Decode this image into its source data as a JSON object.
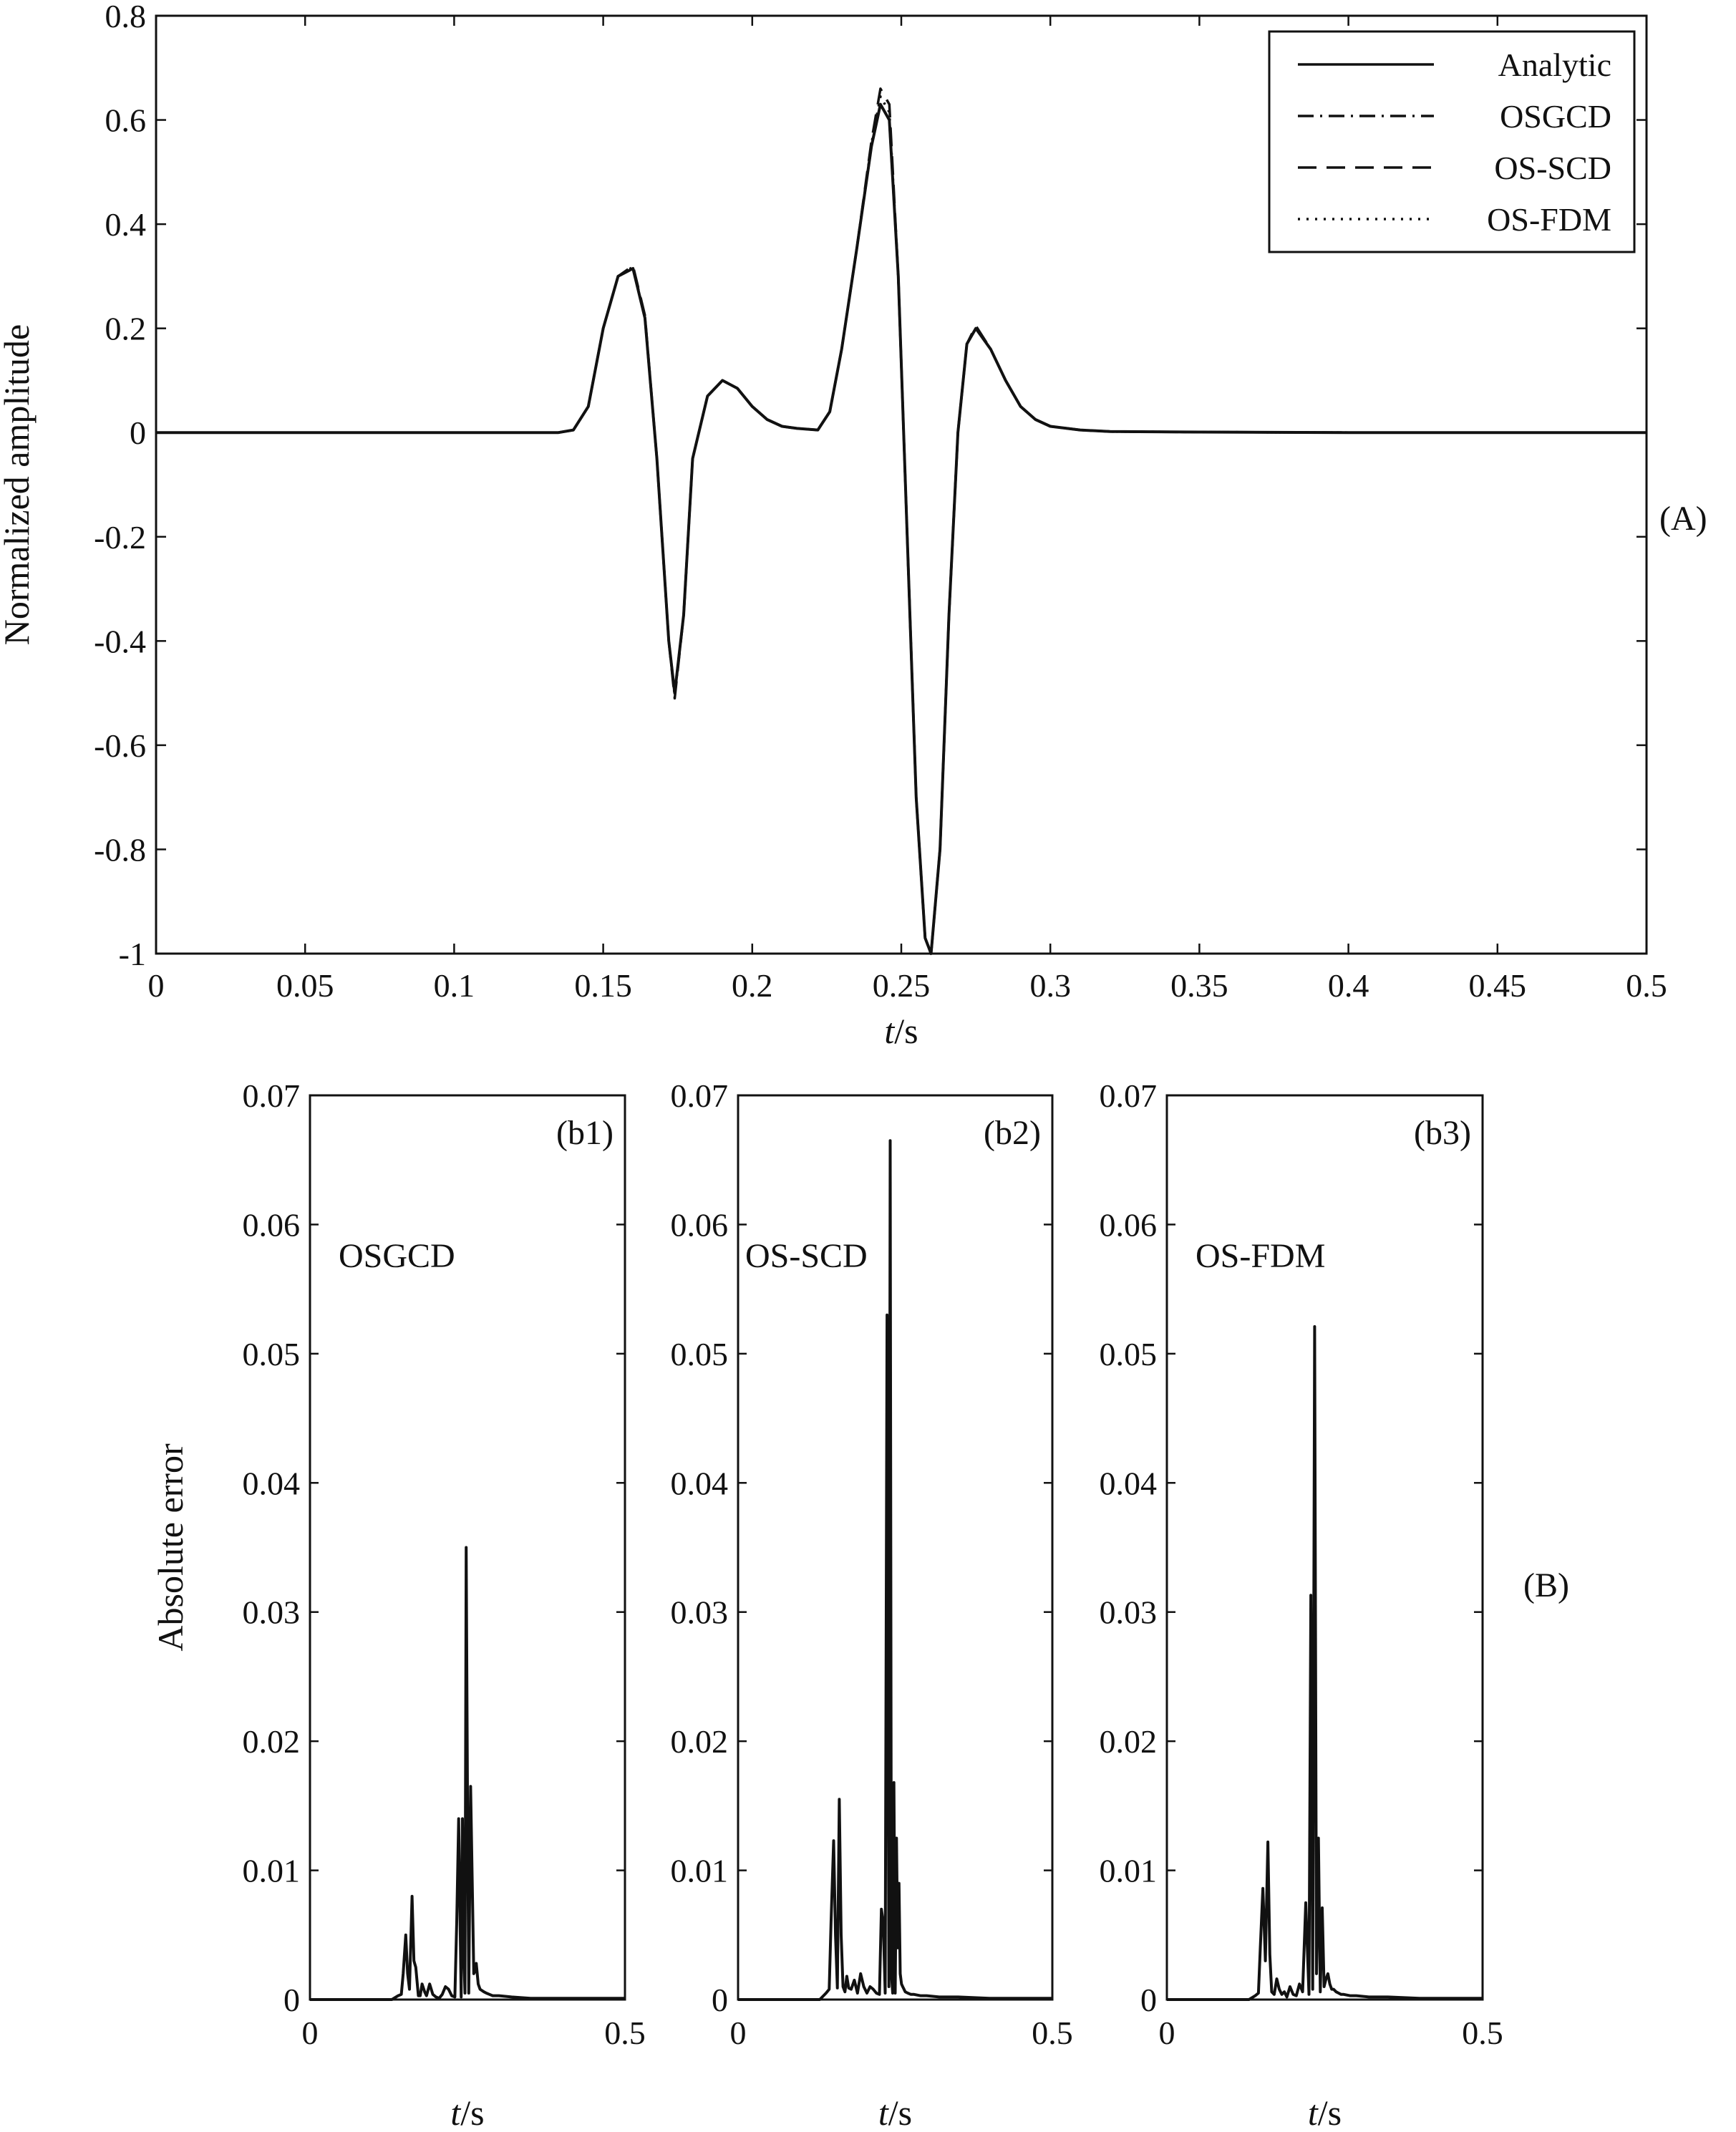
{
  "chart_data": [
    {
      "id": "A",
      "type": "line",
      "panel_label": "(A)",
      "xlabel": "t/s",
      "xlabel_italic": "t",
      "xlabel_rest": "/s",
      "ylabel": "Normalized amplitude",
      "xlim": [
        0,
        0.5
      ],
      "ylim": [
        -1,
        0.8
      ],
      "xticks": [
        "0",
        "0.05",
        "0.1",
        "0.15",
        "0.2",
        "0.25",
        "0.3",
        "0.35",
        "0.4",
        "0.45",
        "0.5"
      ],
      "yticks": [
        "0.8",
        "0.6",
        "0.4",
        "0.2",
        "0",
        "-0.2",
        "-0.4",
        "-0.6",
        "-0.8",
        "-1"
      ],
      "grid": false,
      "legend_position": "top-right",
      "series": [
        {
          "name": "Analytic",
          "style": "solid",
          "x": [
            0,
            0.135,
            0.14,
            0.145,
            0.15,
            0.155,
            0.16,
            0.164,
            0.168,
            0.172,
            0.174,
            0.177,
            0.18,
            0.185,
            0.19,
            0.195,
            0.2,
            0.205,
            0.21,
            0.215,
            0.222,
            0.226,
            0.23,
            0.235,
            0.24,
            0.243,
            0.246,
            0.249,
            0.252,
            0.255,
            0.258,
            0.26,
            0.263,
            0.266,
            0.269,
            0.272,
            0.275,
            0.28,
            0.285,
            0.29,
            0.295,
            0.3,
            0.31,
            0.32,
            0.35,
            0.4,
            0.45,
            0.5
          ],
          "y": [
            0,
            0,
            0.005,
            0.05,
            0.2,
            0.3,
            0.315,
            0.22,
            -0.05,
            -0.4,
            -0.5,
            -0.35,
            -0.05,
            0.07,
            0.1,
            0.085,
            0.05,
            0.025,
            0.012,
            0.008,
            0.005,
            0.04,
            0.16,
            0.35,
            0.55,
            0.63,
            0.6,
            0.3,
            -0.2,
            -0.7,
            -0.97,
            -1.0,
            -0.8,
            -0.35,
            0.0,
            0.17,
            0.2,
            0.16,
            0.1,
            0.05,
            0.025,
            0.012,
            0.005,
            0.002,
            0.001,
            0,
            0,
            0
          ]
        },
        {
          "name": "OSGCD",
          "style": "dash-dot",
          "x": [
            0,
            0.135,
            0.14,
            0.145,
            0.15,
            0.155,
            0.16,
            0.164,
            0.168,
            0.172,
            0.174,
            0.177,
            0.18,
            0.185,
            0.19,
            0.195,
            0.2,
            0.205,
            0.21,
            0.215,
            0.222,
            0.226,
            0.23,
            0.235,
            0.24,
            0.243,
            0.246,
            0.249,
            0.252,
            0.255,
            0.258,
            0.26,
            0.263,
            0.266,
            0.269,
            0.272,
            0.275,
            0.28,
            0.285,
            0.29,
            0.295,
            0.3,
            0.31,
            0.32,
            0.35,
            0.4,
            0.45,
            0.5
          ],
          "y": [
            0,
            0,
            0.005,
            0.05,
            0.2,
            0.3,
            0.315,
            0.22,
            -0.05,
            -0.4,
            -0.5,
            -0.35,
            -0.05,
            0.07,
            0.1,
            0.085,
            0.05,
            0.025,
            0.012,
            0.008,
            0.005,
            0.04,
            0.16,
            0.35,
            0.55,
            0.63,
            0.6,
            0.3,
            -0.2,
            -0.7,
            -0.97,
            -1.0,
            -0.8,
            -0.35,
            0.0,
            0.17,
            0.2,
            0.16,
            0.1,
            0.05,
            0.025,
            0.012,
            0.005,
            0.002,
            0.001,
            0,
            0,
            0
          ]
        },
        {
          "name": "OS-SCD",
          "style": "dashed",
          "x": [
            0,
            0.135,
            0.14,
            0.145,
            0.15,
            0.155,
            0.16,
            0.164,
            0.168,
            0.172,
            0.174,
            0.177,
            0.18,
            0.185,
            0.19,
            0.195,
            0.2,
            0.205,
            0.21,
            0.215,
            0.222,
            0.226,
            0.23,
            0.235,
            0.24,
            0.243,
            0.246,
            0.249,
            0.252,
            0.255,
            0.258,
            0.26,
            0.263,
            0.266,
            0.269,
            0.272,
            0.275,
            0.28,
            0.285,
            0.29,
            0.295,
            0.3,
            0.31,
            0.32,
            0.35,
            0.4,
            0.45,
            0.5
          ],
          "y": [
            0,
            0,
            0.005,
            0.05,
            0.2,
            0.3,
            0.32,
            0.225,
            -0.05,
            -0.4,
            -0.51,
            -0.35,
            -0.05,
            0.07,
            0.1,
            0.085,
            0.05,
            0.025,
            0.012,
            0.008,
            0.005,
            0.04,
            0.16,
            0.35,
            0.56,
            0.66,
            0.63,
            0.3,
            -0.2,
            -0.7,
            -0.97,
            -1.0,
            -0.8,
            -0.35,
            0.0,
            0.17,
            0.205,
            0.16,
            0.1,
            0.05,
            0.025,
            0.012,
            0.005,
            0.002,
            0.001,
            0,
            0,
            0
          ]
        },
        {
          "name": "OS-FDM",
          "style": "dotted",
          "x": [
            0,
            0.135,
            0.14,
            0.145,
            0.15,
            0.155,
            0.16,
            0.164,
            0.168,
            0.172,
            0.174,
            0.177,
            0.18,
            0.185,
            0.19,
            0.195,
            0.2,
            0.205,
            0.21,
            0.215,
            0.222,
            0.226,
            0.23,
            0.235,
            0.24,
            0.243,
            0.246,
            0.249,
            0.252,
            0.255,
            0.258,
            0.26,
            0.263,
            0.266,
            0.269,
            0.272,
            0.275,
            0.28,
            0.285,
            0.29,
            0.295,
            0.3,
            0.31,
            0.32,
            0.35,
            0.4,
            0.45,
            0.5
          ],
          "y": [
            0,
            0,
            0.005,
            0.05,
            0.2,
            0.3,
            0.318,
            0.222,
            -0.05,
            -0.4,
            -0.505,
            -0.35,
            -0.05,
            0.07,
            0.1,
            0.085,
            0.05,
            0.025,
            0.012,
            0.008,
            0.005,
            0.04,
            0.16,
            0.35,
            0.555,
            0.645,
            0.615,
            0.3,
            -0.2,
            -0.7,
            -0.97,
            -1.0,
            -0.8,
            -0.35,
            0.0,
            0.17,
            0.2,
            0.16,
            0.1,
            0.05,
            0.025,
            0.012,
            0.005,
            0.002,
            0.001,
            0,
            0,
            0
          ]
        }
      ]
    },
    {
      "id": "B",
      "type": "line",
      "group_label": "(B)",
      "ylabel": "Absolute error",
      "xlim": [
        0,
        0.5
      ],
      "ylim": [
        0,
        0.07
      ],
      "xticks": [
        "0",
        "0.5"
      ],
      "yticks": [
        "0.07",
        "0.06",
        "0.05",
        "0.04",
        "0.03",
        "0.02",
        "0.01",
        "0"
      ],
      "grid": false,
      "panels": [
        {
          "panel_label": "(b1)",
          "annotation": "OSGCD",
          "xlabel": "t/s",
          "xlabel_italic": "t",
          "xlabel_rest": "/s",
          "x": [
            0,
            0.13,
            0.14,
            0.145,
            0.148,
            0.152,
            0.155,
            0.158,
            0.162,
            0.165,
            0.168,
            0.172,
            0.175,
            0.178,
            0.182,
            0.185,
            0.19,
            0.195,
            0.2,
            0.205,
            0.21,
            0.215,
            0.22,
            0.225,
            0.23,
            0.233,
            0.236,
            0.24,
            0.242,
            0.244,
            0.246,
            0.248,
            0.25,
            0.252,
            0.255,
            0.258,
            0.26,
            0.262,
            0.264,
            0.267,
            0.27,
            0.273,
            0.276,
            0.28,
            0.285,
            0.29,
            0.3,
            0.32,
            0.35,
            0.4,
            0.45,
            0.5
          ],
          "y": [
            0,
            0,
            0.0003,
            0.0004,
            0.002,
            0.005,
            0.002,
            0.0008,
            0.008,
            0.003,
            0.0025,
            0.0003,
            0.0003,
            0.0012,
            0.0006,
            0.0003,
            0.0012,
            0.0004,
            0.0002,
            0.0001,
            0.0004,
            0.001,
            0.0008,
            0.0003,
            0.0002,
            0.006,
            0.014,
            0.0002,
            0.014,
            0.004,
            0.0005,
            0.035,
            0.016,
            0.0005,
            0.0165,
            0.008,
            0.002,
            0.0022,
            0.0028,
            0.0012,
            0.0008,
            0.0007,
            0.0006,
            0.0005,
            0.0004,
            0.0003,
            0.0003,
            0.0002,
            0.0001,
            0.0001,
            0.0001,
            0.0001
          ]
        },
        {
          "panel_label": "(b2)",
          "annotation": "OS-SCD",
          "xlabel": "t/s",
          "xlabel_italic": "t",
          "xlabel_rest": "/s",
          "x": [
            0,
            0.13,
            0.14,
            0.145,
            0.148,
            0.152,
            0.155,
            0.158,
            0.161,
            0.164,
            0.167,
            0.17,
            0.173,
            0.176,
            0.18,
            0.185,
            0.19,
            0.195,
            0.2,
            0.205,
            0.21,
            0.215,
            0.22,
            0.225,
            0.228,
            0.231,
            0.234,
            0.237,
            0.24,
            0.242,
            0.244,
            0.246,
            0.248,
            0.25,
            0.252,
            0.254,
            0.256,
            0.258,
            0.26,
            0.262,
            0.264,
            0.266,
            0.27,
            0.275,
            0.28,
            0.29,
            0.3,
            0.32,
            0.35,
            0.4,
            0.45,
            0.5
          ],
          "y": [
            0,
            0,
            0.0005,
            0.0008,
            0.006,
            0.0123,
            0.005,
            0.0009,
            0.0155,
            0.005,
            0.001,
            0.0006,
            0.0018,
            0.0009,
            0.0008,
            0.0015,
            0.0005,
            0.002,
            0.001,
            0.0005,
            0.001,
            0.0008,
            0.0005,
            0.0004,
            0.007,
            0.006,
            0.0005,
            0.053,
            0.001,
            0.0665,
            0.002,
            0.0005,
            0.0168,
            0.0005,
            0.0125,
            0.004,
            0.009,
            0.002,
            0.0012,
            0.001,
            0.0008,
            0.0006,
            0.0005,
            0.0004,
            0.0004,
            0.0003,
            0.0003,
            0.0002,
            0.0002,
            0.0001,
            0.0001,
            0.0001
          ]
        },
        {
          "panel_label": "(b3)",
          "annotation": "OS-FDM",
          "xlabel": "t/s",
          "xlabel_italic": "t",
          "xlabel_rest": "/s",
          "x": [
            0,
            0.13,
            0.14,
            0.145,
            0.148,
            0.152,
            0.156,
            0.16,
            0.163,
            0.166,
            0.17,
            0.174,
            0.178,
            0.182,
            0.186,
            0.19,
            0.195,
            0.2,
            0.205,
            0.21,
            0.215,
            0.22,
            0.225,
            0.228,
            0.231,
            0.234,
            0.237,
            0.24,
            0.243,
            0.246,
            0.249,
            0.252,
            0.255,
            0.258,
            0.261,
            0.264,
            0.268,
            0.272,
            0.276,
            0.28,
            0.29,
            0.3,
            0.32,
            0.35,
            0.4,
            0.45,
            0.5
          ],
          "y": [
            0,
            0,
            0.0003,
            0.0005,
            0.004,
            0.0086,
            0.003,
            0.0122,
            0.0035,
            0.0006,
            0.0004,
            0.0016,
            0.0008,
            0.0004,
            0.0006,
            0.0002,
            0.001,
            0.0004,
            0.0003,
            0.0012,
            0.0006,
            0.0075,
            0.0004,
            0.0313,
            0.0008,
            0.0521,
            0.002,
            0.0125,
            0.0006,
            0.0071,
            0.001,
            0.0016,
            0.002,
            0.0012,
            0.0008,
            0.0008,
            0.0006,
            0.0005,
            0.0004,
            0.0004,
            0.0003,
            0.0003,
            0.0002,
            0.0002,
            0.0001,
            0.0001,
            0.0001
          ]
        }
      ]
    }
  ]
}
